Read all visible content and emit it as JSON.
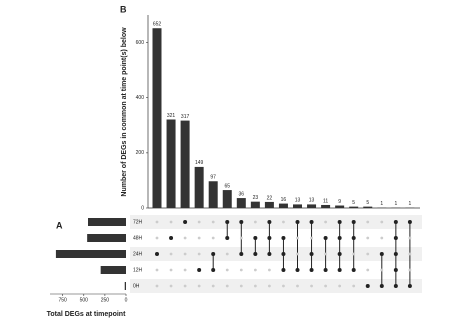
{
  "chart_data": {
    "type": "upset",
    "panel_labels": [
      "B",
      "A"
    ],
    "ylabel": "Number of DEGs in common at time point(s) below",
    "values": [
      652,
      321,
      317,
      149,
      97,
      65,
      36,
      23,
      22,
      16,
      13,
      13,
      11,
      9,
      5,
      5,
      1,
      1,
      1
    ],
    "ylim": [
      0,
      700
    ],
    "yticks": [
      0,
      200,
      400,
      600
    ],
    "color": "#333333",
    "sets": [
      {
        "name": "72H",
        "total": 450,
        "members": [
          false,
          false,
          true,
          false,
          false,
          true,
          true,
          false,
          true,
          false,
          true,
          true,
          false,
          true,
          true,
          false,
          false,
          true,
          true
        ]
      },
      {
        "name": "48H",
        "total": 460,
        "members": [
          false,
          true,
          false,
          false,
          false,
          true,
          false,
          true,
          true,
          true,
          false,
          false,
          true,
          true,
          true,
          false,
          false,
          true,
          false
        ]
      },
      {
        "name": "24H",
        "total": 830,
        "members": [
          true,
          false,
          false,
          false,
          true,
          false,
          true,
          true,
          true,
          true,
          false,
          true,
          false,
          true,
          false,
          false,
          true,
          true,
          false
        ]
      },
      {
        "name": "12H",
        "total": 300,
        "members": [
          false,
          false,
          false,
          true,
          true,
          false,
          false,
          false,
          false,
          true,
          true,
          true,
          true,
          true,
          true,
          false,
          false,
          true,
          false
        ]
      },
      {
        "name": "0H",
        "total": 15,
        "members": [
          false,
          false,
          false,
          false,
          false,
          false,
          false,
          false,
          false,
          false,
          false,
          false,
          false,
          false,
          false,
          true,
          true,
          true,
          true
        ]
      }
    ],
    "xlabel": "Total DEGs at timepoint",
    "xlim": [
      900,
      0
    ],
    "xticks": [
      750,
      500,
      250,
      0
    ]
  }
}
